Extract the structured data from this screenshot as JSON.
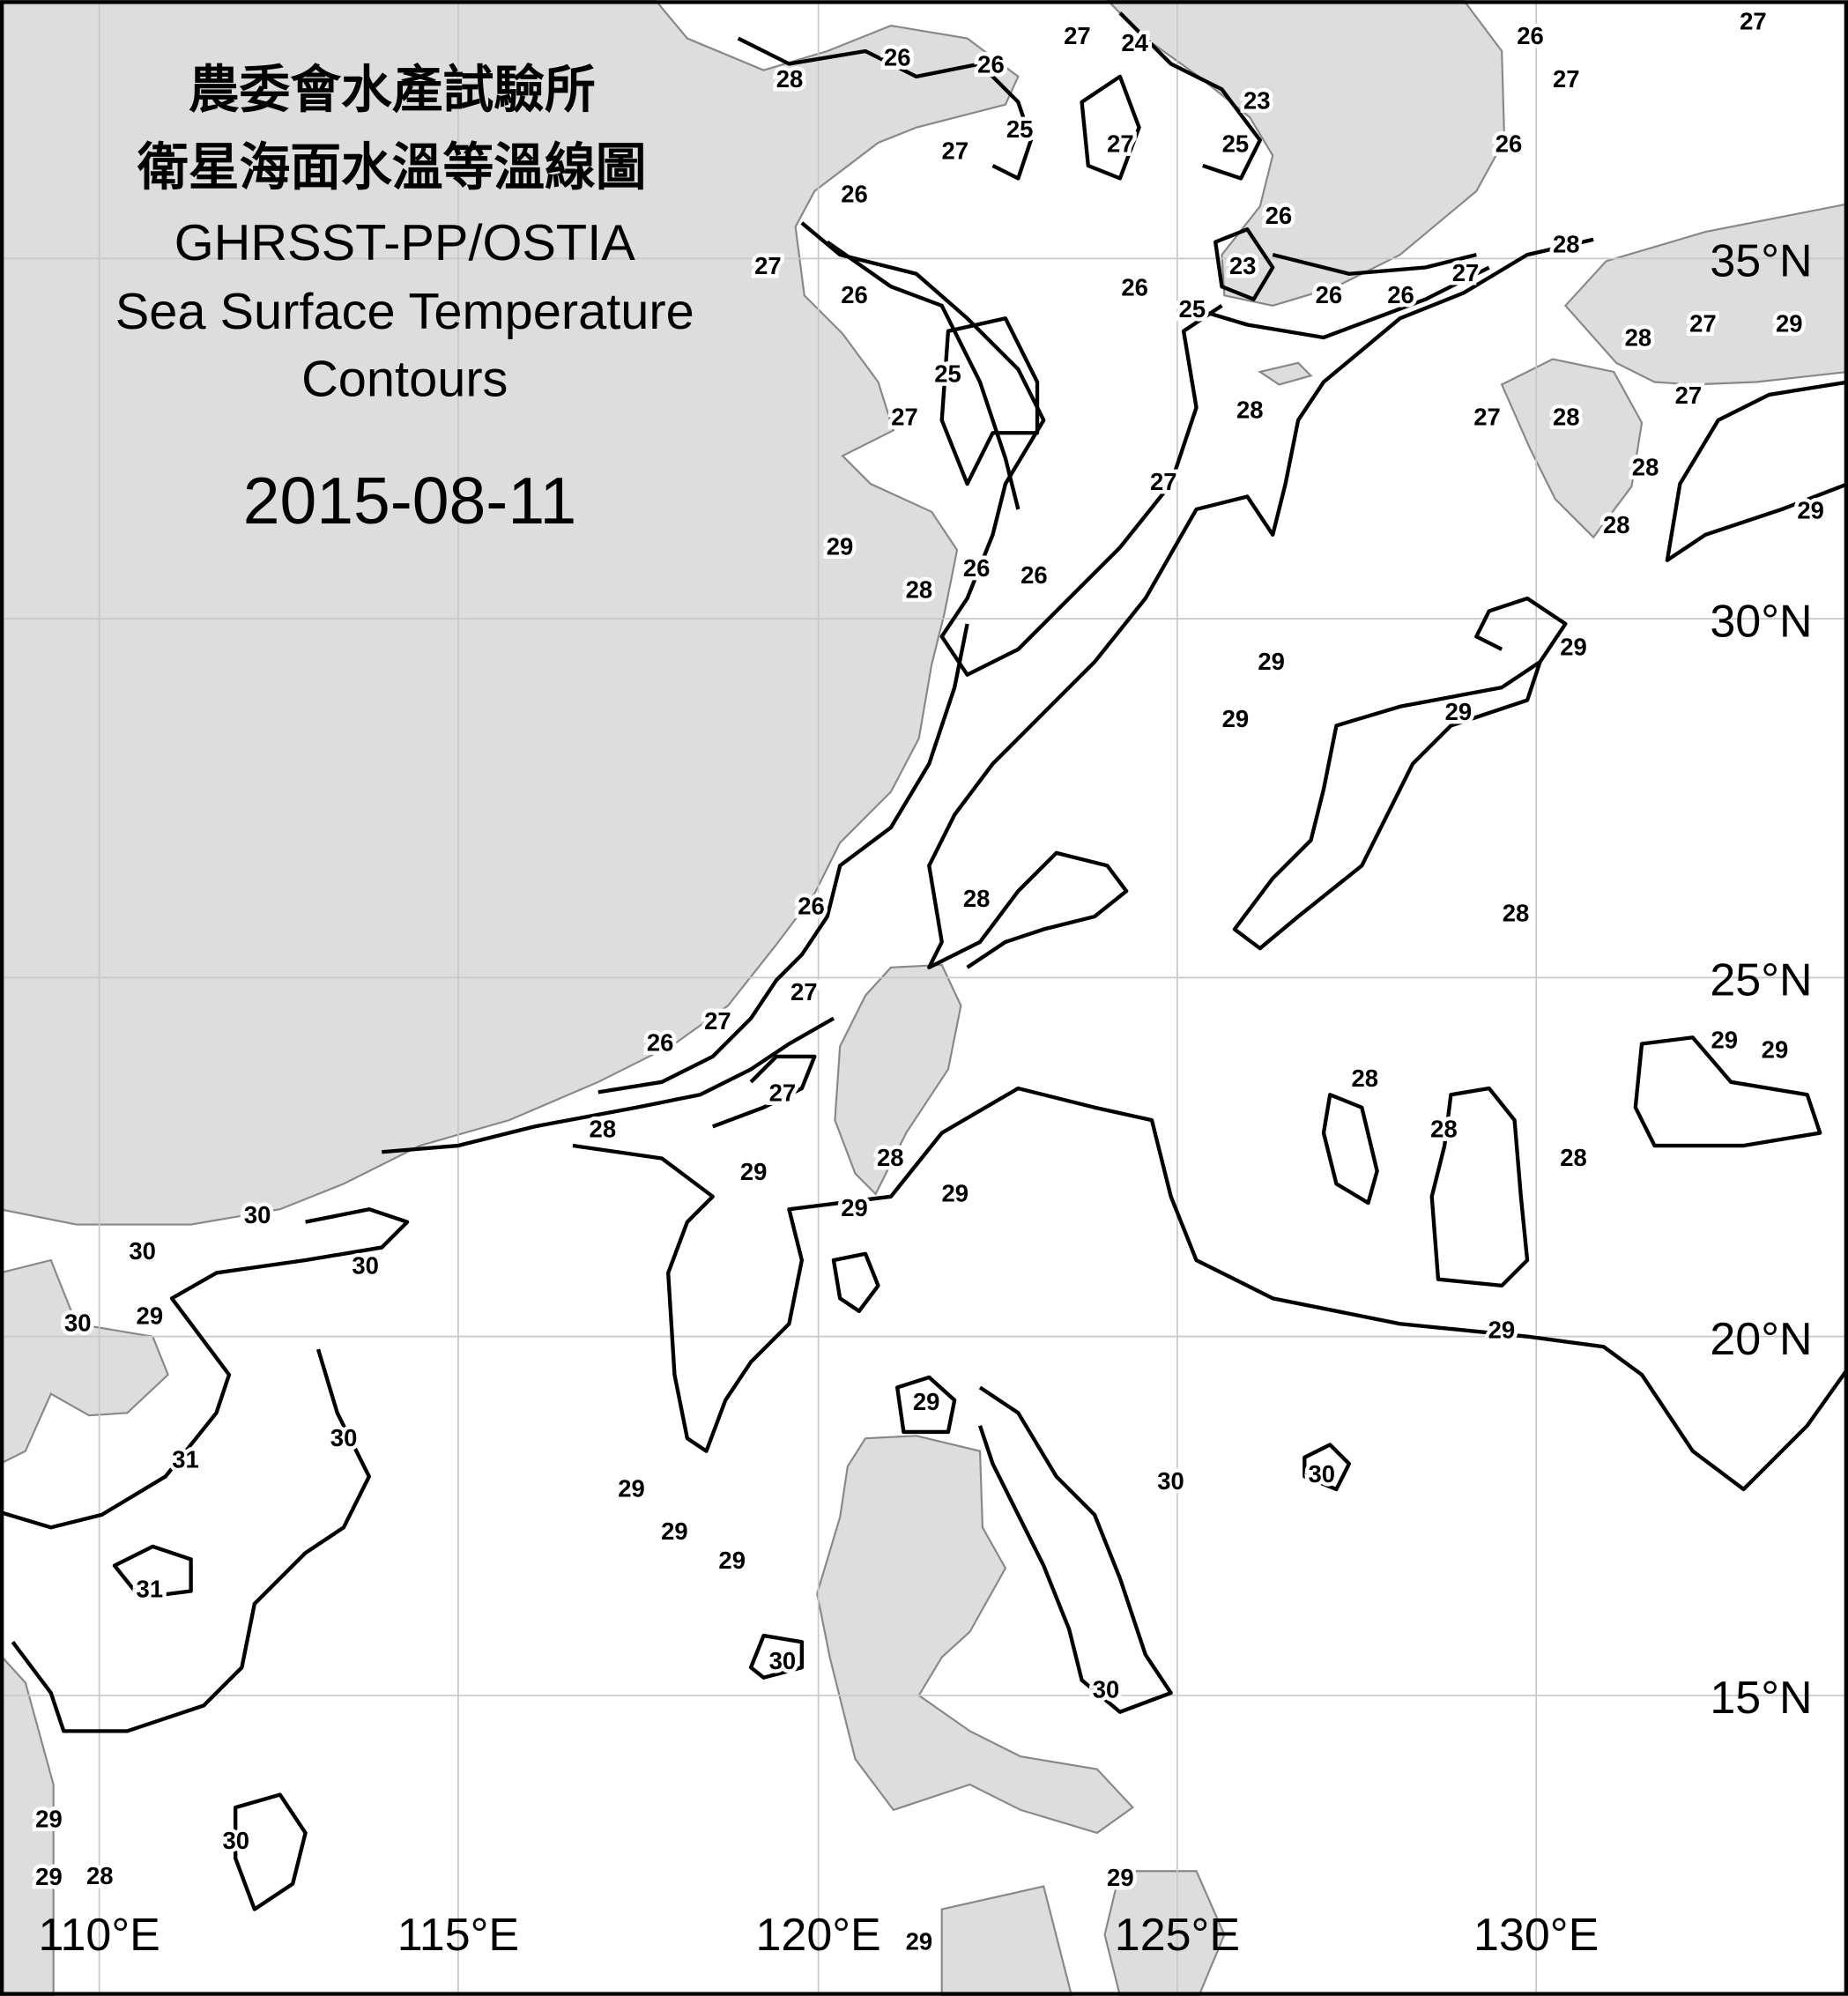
{
  "title": {
    "org_zh": "農委會水產試驗所",
    "title_zh": "衛星海面水溫等溫線圖",
    "source": "GHRSST-PP/OSTIA",
    "title_en_1": "Sea Surface Temperature",
    "title_en_2": "Contours",
    "date": "2015-08-11"
  },
  "colors": {
    "land": "#dddddd",
    "sea": "#ffffff",
    "contour": "#000000",
    "grid": "#c8c8c8"
  },
  "axes": {
    "lon_labels": [
      "110°E",
      "115°E",
      "120°E",
      "125°E",
      "130°E"
    ],
    "lat_labels": [
      "35°N",
      "30°N",
      "25°N",
      "20°N",
      "15°N"
    ]
  },
  "chart_data": {
    "type": "contour-map",
    "units": "°C",
    "lon_range": [
      108.6,
      133.3
    ],
    "lat_range": [
      12.4,
      38.6
    ],
    "contour_interval": 1,
    "contour_labels": [
      {
        "value": "28",
        "lon": 119.6,
        "lat": 37.5
      },
      {
        "value": "26",
        "lon": 121.1,
        "lat": 37.8
      },
      {
        "value": "26",
        "lon": 122.4,
        "lat": 37.7
      },
      {
        "value": "27",
        "lon": 123.6,
        "lat": 38.1
      },
      {
        "value": "24",
        "lon": 124.4,
        "lat": 38.0
      },
      {
        "value": "23",
        "lon": 126.1,
        "lat": 37.2
      },
      {
        "value": "25",
        "lon": 125.8,
        "lat": 36.6
      },
      {
        "value": "25",
        "lon": 122.8,
        "lat": 36.8
      },
      {
        "value": "27",
        "lon": 121.9,
        "lat": 36.5
      },
      {
        "value": "27",
        "lon": 124.2,
        "lat": 36.6
      },
      {
        "value": "26",
        "lon": 120.5,
        "lat": 35.9
      },
      {
        "value": "27",
        "lon": 119.3,
        "lat": 34.9
      },
      {
        "value": "26",
        "lon": 120.5,
        "lat": 34.5
      },
      {
        "value": "26",
        "lon": 124.4,
        "lat": 34.6
      },
      {
        "value": "23",
        "lon": 125.9,
        "lat": 34.9
      },
      {
        "value": "25",
        "lon": 125.2,
        "lat": 34.3
      },
      {
        "value": "26",
        "lon": 126.4,
        "lat": 35.6
      },
      {
        "value": "26",
        "lon": 127.1,
        "lat": 34.5
      },
      {
        "value": "26",
        "lon": 128.1,
        "lat": 34.5
      },
      {
        "value": "27",
        "lon": 129.0,
        "lat": 34.8
      },
      {
        "value": "26",
        "lon": 129.9,
        "lat": 38.1
      },
      {
        "value": "27",
        "lon": 130.4,
        "lat": 37.5
      },
      {
        "value": "26",
        "lon": 129.6,
        "lat": 36.6
      },
      {
        "value": "27",
        "lon": 133.0,
        "lat": 38.3
      },
      {
        "value": "28",
        "lon": 130.4,
        "lat": 35.2
      },
      {
        "value": "28",
        "lon": 131.4,
        "lat": 33.9
      },
      {
        "value": "27",
        "lon": 132.3,
        "lat": 34.1
      },
      {
        "value": "29",
        "lon": 133.5,
        "lat": 34.1
      },
      {
        "value": "27",
        "lon": 129.3,
        "lat": 32.8
      },
      {
        "value": "28",
        "lon": 130.4,
        "lat": 32.8
      },
      {
        "value": "27",
        "lon": 132.1,
        "lat": 33.1
      },
      {
        "value": "28",
        "lon": 131.5,
        "lat": 32.1
      },
      {
        "value": "28",
        "lon": 131.1,
        "lat": 31.3
      },
      {
        "value": "29",
        "lon": 133.8,
        "lat": 31.5
      },
      {
        "value": "25",
        "lon": 121.8,
        "lat": 33.4
      },
      {
        "value": "27",
        "lon": 121.2,
        "lat": 32.8
      },
      {
        "value": "28",
        "lon": 126.0,
        "lat": 32.9
      },
      {
        "value": "27",
        "lon": 124.8,
        "lat": 31.9
      },
      {
        "value": "29",
        "lon": 120.3,
        "lat": 31.0
      },
      {
        "value": "28",
        "lon": 121.4,
        "lat": 30.4
      },
      {
        "value": "26",
        "lon": 122.2,
        "lat": 30.7
      },
      {
        "value": "26",
        "lon": 123.0,
        "lat": 30.6
      },
      {
        "value": "29",
        "lon": 126.3,
        "lat": 29.4
      },
      {
        "value": "29",
        "lon": 125.8,
        "lat": 28.6
      },
      {
        "value": "29",
        "lon": 128.9,
        "lat": 28.7
      },
      {
        "value": "29",
        "lon": 130.5,
        "lat": 29.6
      },
      {
        "value": "28",
        "lon": 129.7,
        "lat": 25.9
      },
      {
        "value": "28",
        "lon": 122.2,
        "lat": 26.1
      },
      {
        "value": "26",
        "lon": 119.9,
        "lat": 26.0
      },
      {
        "value": "27",
        "lon": 119.8,
        "lat": 24.8
      },
      {
        "value": "27",
        "lon": 118.6,
        "lat": 24.4
      },
      {
        "value": "26",
        "lon": 117.8,
        "lat": 24.1
      },
      {
        "value": "27",
        "lon": 119.5,
        "lat": 23.4
      },
      {
        "value": "28",
        "lon": 117.0,
        "lat": 22.9
      },
      {
        "value": "29",
        "lon": 119.1,
        "lat": 22.3
      },
      {
        "value": "28",
        "lon": 121.0,
        "lat": 22.5
      },
      {
        "value": "30",
        "lon": 112.2,
        "lat": 21.7
      },
      {
        "value": "30",
        "lon": 113.7,
        "lat": 21.0
      },
      {
        "value": "30",
        "lon": 110.6,
        "lat": 21.2
      },
      {
        "value": "30",
        "lon": 109.7,
        "lat": 20.2
      },
      {
        "value": "29",
        "lon": 110.7,
        "lat": 20.3
      },
      {
        "value": "30",
        "lon": 113.4,
        "lat": 18.6
      },
      {
        "value": "31",
        "lon": 111.2,
        "lat": 18.3
      },
      {
        "value": "31",
        "lon": 110.7,
        "lat": 16.5
      },
      {
        "value": "29",
        "lon": 120.5,
        "lat": 21.8
      },
      {
        "value": "29",
        "lon": 121.9,
        "lat": 22.0
      },
      {
        "value": "28",
        "lon": 127.6,
        "lat": 23.6
      },
      {
        "value": "28",
        "lon": 128.7,
        "lat": 22.9
      },
      {
        "value": "28",
        "lon": 130.5,
        "lat": 22.5
      },
      {
        "value": "29",
        "lon": 132.6,
        "lat": 24.7
      },
      {
        "value": "29",
        "lon": 133.3,
        "lat": 24.0
      },
      {
        "value": "29",
        "lon": 129.5,
        "lat": 20.1
      },
      {
        "value": "29",
        "lon": 121.5,
        "lat": 19.1
      },
      {
        "value": "30",
        "lon": 124.9,
        "lat": 18.0
      },
      {
        "value": "30",
        "lon": 127.0,
        "lat": 18.1
      },
      {
        "value": "29",
        "lon": 117.4,
        "lat": 17.9
      },
      {
        "value": "29",
        "lon": 118.0,
        "lat": 17.3
      },
      {
        "value": "29",
        "lon": 118.8,
        "lat": 16.9
      },
      {
        "value": "30",
        "lon": 119.5,
        "lat": 15.5
      },
      {
        "value": "30",
        "lon": 124.0,
        "lat": 15.1
      },
      {
        "value": "30",
        "lon": 111.9,
        "lat": 13.0
      },
      {
        "value": "29",
        "lon": 109.3,
        "lat": 13.3
      },
      {
        "value": "29",
        "lon": 109.3,
        "lat": 12.5
      },
      {
        "value": "28",
        "lon": 109.3,
        "lat": 11.8
      },
      {
        "value": "29",
        "lon": 124.2,
        "lat": 12.2
      },
      {
        "value": "29",
        "lon": 121.4,
        "lat": 11.6
      }
    ]
  }
}
